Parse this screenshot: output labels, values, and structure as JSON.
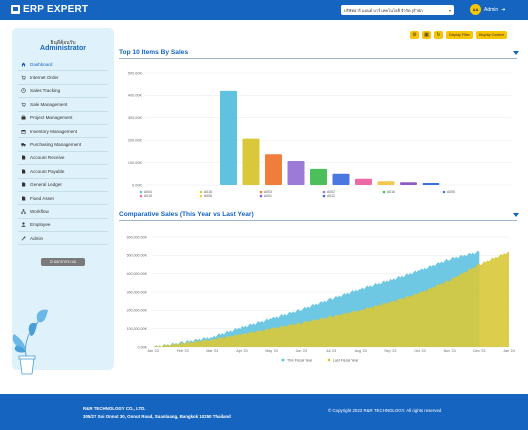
{
  "header": {
    "brand": "ERP EXPERT",
    "company_select": "บริษัทอาร์ แอนด์ บาร์ เทคโนโลยี จำกัด (สำนัก",
    "user_initials": "AA",
    "user_name": "Admin"
  },
  "sidebar": {
    "welcome": "ยินดีต้อนรับ",
    "user": "Administrator",
    "items": [
      {
        "label": "Dashboard",
        "icon": "home-icon",
        "active": true
      },
      {
        "label": "Internet Order",
        "icon": "cart-icon"
      },
      {
        "label": "Sales Tracking",
        "icon": "clock-icon"
      },
      {
        "label": "Sale Management",
        "icon": "cart-icon"
      },
      {
        "label": "Project Management",
        "icon": "briefcase-icon"
      },
      {
        "label": "Inventory Management",
        "icon": "box-icon"
      },
      {
        "label": "Purchasing Management",
        "icon": "truck-icon"
      },
      {
        "label": "Account Receive",
        "icon": "file-icon"
      },
      {
        "label": "Account Payable",
        "icon": "file-icon"
      },
      {
        "label": "General Ledger",
        "icon": "file-icon"
      },
      {
        "label": "Fixed Asset",
        "icon": "file-icon"
      },
      {
        "label": "Workflow",
        "icon": "sitemap-icon"
      },
      {
        "label": "Employee",
        "icon": "user-icon"
      },
      {
        "label": "Admin",
        "icon": "wrench-icon"
      }
    ],
    "logout": "ออกจากระบบ"
  },
  "toolbar": {
    "btn1": "Display Filter",
    "btn2": "Display Content"
  },
  "top_sales": {
    "title": "Top 10 Items By Sales",
    "yticks": [
      "500.00K",
      "400.00K",
      "300.00K",
      "200.00K",
      "100.00K",
      "0.00K"
    ],
    "legend": [
      {
        "label": "A004",
        "color": "#5ec2e0"
      },
      {
        "label": "A018",
        "color": "#d8c83a"
      },
      {
        "label": "A003",
        "color": "#ef7d3c"
      },
      {
        "label": "A002",
        "color": "#9c7bd8"
      },
      {
        "label": "A016",
        "color": "#4cbf5b"
      },
      {
        "label": "A005",
        "color": "#4a78e0"
      },
      {
        "label": "A019",
        "color": "#ec6ba6"
      },
      {
        "label": "A006",
        "color": "#f2c94c"
      },
      {
        "label": "A001",
        "color": "#8e5cc7"
      },
      {
        "label": "A012",
        "color": "#3a6fe0"
      }
    ]
  },
  "comparative": {
    "title": "Comparative Sales (This Year vs Last Year)",
    "yticks": [
      "600,000.00K",
      "500,000.00K",
      "400,000.00K",
      "300,000.00K",
      "200,000.00K",
      "100,000.00K",
      "0.00K"
    ],
    "months": [
      "Jan '23",
      "Feb '23",
      "Mar '23",
      "Apr '23",
      "May '23",
      "Jun '23",
      "Jul '23",
      "Aug '23",
      "Sep '23",
      "Oct '23",
      "Nov '23",
      "Dec '23",
      "Jan '24"
    ],
    "legend": [
      {
        "label": "This Fiscal Year",
        "color": "#5ec2e0"
      },
      {
        "label": "Last Fiscal Year",
        "color": "#d8c83a"
      }
    ]
  },
  "chart_data": [
    {
      "type": "bar",
      "title": "Top 10 Items By Sales",
      "categories": [
        "A004",
        "A018",
        "A003",
        "A002",
        "A016",
        "A005",
        "A019",
        "A006",
        "A001",
        "A012"
      ],
      "values": [
        420,
        207,
        137,
        107,
        72,
        50,
        28,
        17,
        12,
        9
      ],
      "colors": [
        "#5ec2e0",
        "#d8c83a",
        "#ef7d3c",
        "#9c7bd8",
        "#4cbf5b",
        "#4a78e0",
        "#ec6ba6",
        "#f2c94c",
        "#8e5cc7",
        "#3a6fe0"
      ],
      "ylim": [
        0,
        500
      ],
      "yunit": "K"
    },
    {
      "type": "area",
      "title": "Comparative Sales (This Year vs Last Year)",
      "x": [
        "Jan '23",
        "Feb '23",
        "Mar '23",
        "Apr '23",
        "May '23",
        "Jun '23",
        "Jul '23",
        "Aug '23",
        "Sep '23",
        "Oct '23",
        "Nov '23",
        "Dec '23",
        "Jan '24"
      ],
      "series": [
        {
          "name": "This Fiscal Year",
          "color": "#5ec2e0",
          "values": [
            0,
            25000,
            55000,
            108000,
            155000,
            205000,
            262000,
            318000,
            365000,
            418000,
            480000,
            520000,
            null
          ]
        },
        {
          "name": "Last Fiscal Year",
          "color": "#d8c83a",
          "values": [
            0,
            20000,
            42000,
            70000,
            100000,
            132000,
            165000,
            202000,
            245000,
            295000,
            365000,
            450000,
            520000
          ]
        }
      ],
      "ylim": [
        0,
        600000
      ],
      "yunit": "K"
    }
  ],
  "footer": {
    "company": "R&R TECHNOLOGY CO., LTD.",
    "address": "305/27 Soi Onnut 30, Onnut Road, Suanluang, Bangkok 10250 Thailand",
    "copyright": "© Copyright 2023 R&R TECHNOLOGY. All rights reserved"
  }
}
